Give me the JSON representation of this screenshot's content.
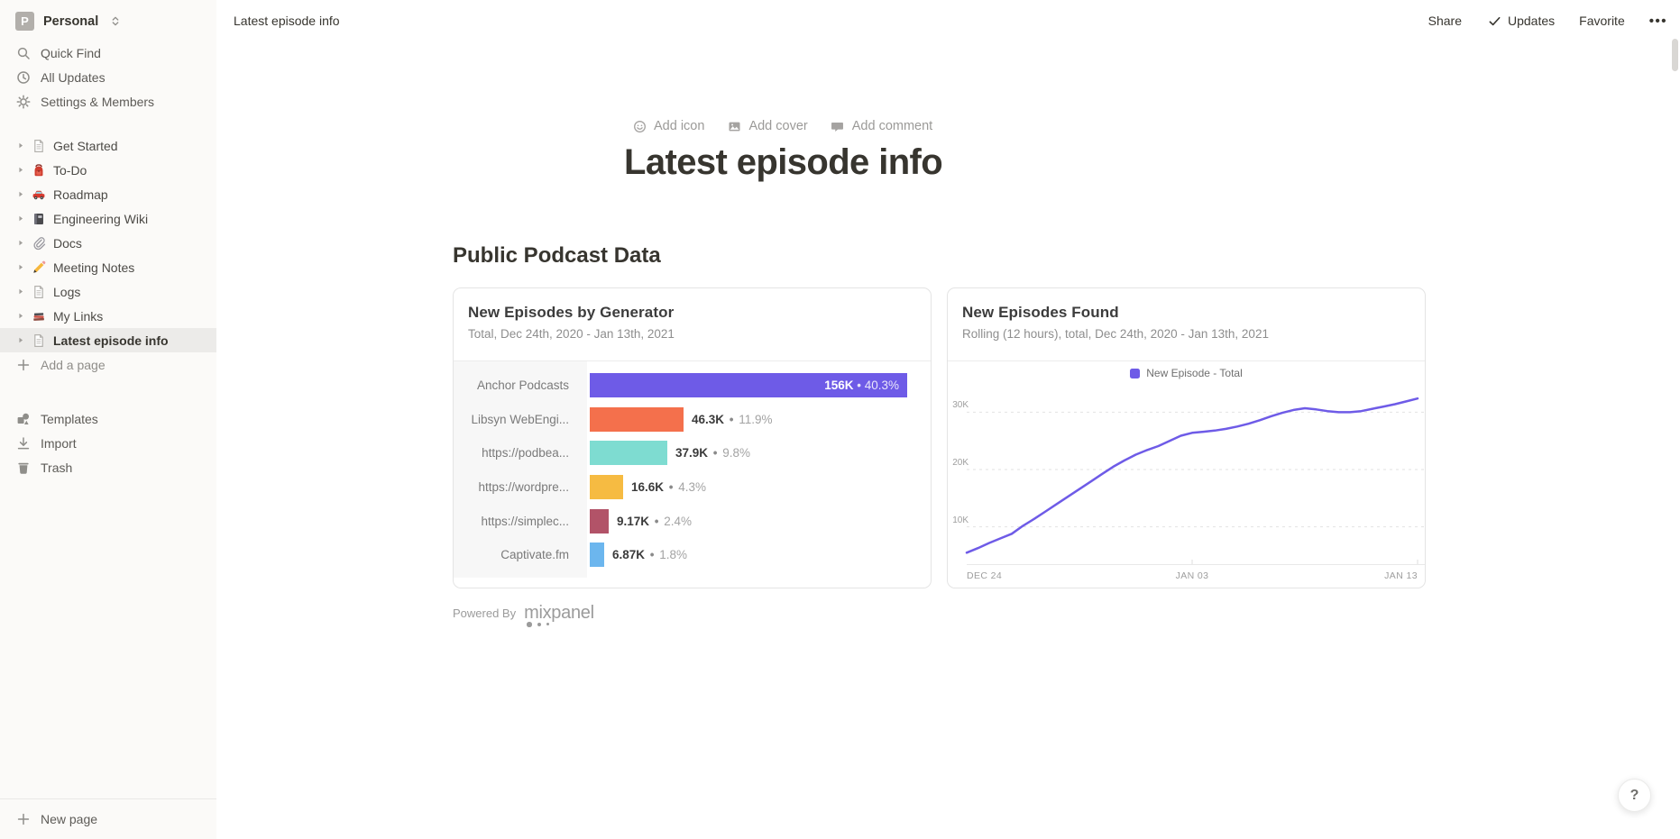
{
  "sidebar": {
    "workspace": {
      "initial": "P",
      "name": "Personal"
    },
    "top_items": [
      {
        "icon": "search-icon",
        "label": "Quick Find"
      },
      {
        "icon": "clock-icon",
        "label": "All Updates"
      },
      {
        "icon": "gear-icon",
        "label": "Settings & Members"
      }
    ],
    "pages": [
      {
        "icon": "page-icon",
        "label": "Get Started",
        "selected": false
      },
      {
        "icon": "backpack-icon",
        "label": "To-Do",
        "selected": false
      },
      {
        "icon": "car-icon",
        "label": "Roadmap",
        "selected": false
      },
      {
        "icon": "notebook-icon",
        "label": "Engineering Wiki",
        "selected": false
      },
      {
        "icon": "paperclip-icon",
        "label": "Docs",
        "selected": false
      },
      {
        "icon": "pencil-icon",
        "label": "Meeting Notes",
        "selected": false
      },
      {
        "icon": "page-icon",
        "label": "Logs",
        "selected": false
      },
      {
        "icon": "books-icon",
        "label": "My Links",
        "selected": false
      },
      {
        "icon": "page-icon",
        "label": "Latest episode info",
        "selected": true
      }
    ],
    "add_page_label": "Add a page",
    "footer_items": [
      {
        "icon": "templates-icon",
        "label": "Templates"
      },
      {
        "icon": "import-icon",
        "label": "Import"
      },
      {
        "icon": "trash-icon",
        "label": "Trash"
      }
    ],
    "new_page_label": "New page"
  },
  "topbar": {
    "breadcrumb": "Latest episode info",
    "share": "Share",
    "updates": "Updates",
    "favorite": "Favorite",
    "more": "•••"
  },
  "page": {
    "add_icon": "Add icon",
    "add_cover": "Add cover",
    "add_comment": "Add comment",
    "title": "Latest episode info",
    "section_heading": "Public Podcast Data",
    "powered_by": "Powered By",
    "mixpanel": "mixpanel",
    "help": "?"
  },
  "chart_data": [
    {
      "type": "bar",
      "orientation": "horizontal",
      "title": "New Episodes by Generator",
      "subtitle": "Total, Dec 24th, 2020 - Jan 13th, 2021",
      "categories": [
        "Anchor Podcasts",
        "Libsyn WebEngi...",
        "https://podbea...",
        "https://wordpre...",
        "https://simplec...",
        "Captivate.fm"
      ],
      "values": [
        156000,
        46300,
        37900,
        16600,
        9170,
        6870
      ],
      "value_labels": [
        "156K",
        "46.3K",
        "37.9K",
        "16.6K",
        "9.17K",
        "6.87K"
      ],
      "pct_labels": [
        "40.3%",
        "11.9%",
        "9.8%",
        "4.3%",
        "2.4%",
        "1.8%"
      ],
      "colors": [
        "#6e5be7",
        "#f4704c",
        "#7edcd1",
        "#f6bb42",
        "#b25368",
        "#6cb6ee"
      ],
      "separator": "•"
    },
    {
      "type": "line",
      "title": "New Episodes Found",
      "subtitle": "Rolling (12 hours), total, Dec 24th, 2020 - Jan 13th, 2021",
      "legend": "New Episode - Total",
      "line_color": "#6e5be7",
      "grid": true,
      "ylim": [
        3500,
        36200
      ],
      "y_tick_values": [
        10000,
        20000,
        30000
      ],
      "y_tick_labels": [
        "10K",
        "20K",
        "30K"
      ],
      "x_tick_labels": [
        "DEC 24",
        "JAN 03",
        "JAN 13"
      ],
      "values": [
        5500,
        6300,
        7200,
        8000,
        8800,
        10200,
        11400,
        12700,
        14000,
        15300,
        16600,
        17900,
        19200,
        20500,
        21600,
        22600,
        23400,
        24100,
        25000,
        25900,
        26400,
        26600,
        26800,
        27100,
        27500,
        28000,
        28600,
        29300,
        29900,
        30400,
        30700,
        30500,
        30200,
        30000,
        30000,
        30200,
        30600,
        31000,
        31400,
        31900,
        32400
      ]
    }
  ]
}
